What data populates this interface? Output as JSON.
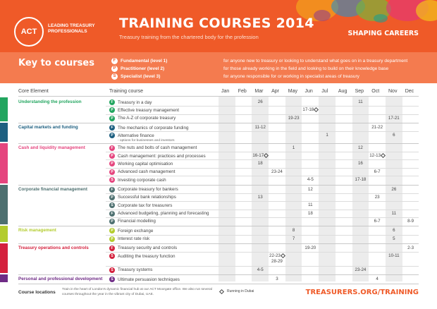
{
  "brand": {
    "logo": "ACT",
    "logo_text": "LEADING TREASURY PROFESSIONALS",
    "title": "TRAINING COURSES 2014",
    "subtitle": "Treasury training from the chartered body for the profession",
    "tagline": "SHAPING CAREERS",
    "accent": "#ef5a28"
  },
  "key": {
    "title": "Key to courses",
    "levels": [
      {
        "letter": "F",
        "label": "Fundamental (level 1)",
        "desc": "for anyone new to treasury or looking to understand what goes on in a treasury department"
      },
      {
        "letter": "P",
        "label": "Practitioner (level 2)",
        "desc": "for those already working in the field and looking to build on their knowledge base"
      },
      {
        "letter": "S",
        "label": "Specialist (level 3)",
        "desc": "for anyone responsible for or working in specialist areas of treasury"
      }
    ]
  },
  "table": {
    "core_header": "Core Element",
    "course_header": "Training course",
    "months": [
      "Jan",
      "Feb",
      "Mar",
      "Apr",
      "May",
      "Jun",
      "Jul",
      "Aug",
      "Sep",
      "Oct",
      "Nov",
      "Dec"
    ],
    "categories": [
      {
        "name": "Understanding the profession",
        "color": "#22a55f"
      },
      {
        "name": "Capital markets and funding",
        "color": "#1d5f80"
      },
      {
        "name": "Cash and liquidity management",
        "color": "#e5457e"
      },
      {
        "name": "Corporate financial management",
        "color": "#4e7070"
      },
      {
        "name": "Risk management",
        "color": "#b3cc2e"
      },
      {
        "name": "Treasury operations and controls",
        "color": "#d4213d"
      },
      {
        "name": "Personal and professional development",
        "color": "#6f2c86"
      }
    ],
    "courses": [
      {
        "level": "F",
        "name": "Treasury in a day",
        "dates": [
          {
            "m": 2,
            "t": "26"
          },
          {
            "m": 8,
            "t": "11"
          }
        ]
      },
      {
        "level": "P",
        "name": "Effective treasury management",
        "dates": [
          {
            "m": 5,
            "t": "17-18",
            "dubai": true
          }
        ]
      },
      {
        "level": "P",
        "name": "The A-Z of corporate treasury",
        "dates": [
          {
            "m": 4,
            "t": "19-23"
          },
          {
            "m": 10,
            "t": "17-21"
          }
        ]
      },
      {
        "level": "F",
        "name": "The mechanics of corporate funding",
        "dates": [
          {
            "m": 2,
            "t": "11-12"
          },
          {
            "m": 9,
            "t": "21-22"
          }
        ]
      },
      {
        "level": "P",
        "name": "Alternative finance",
        "note": "- options for businesses and investors",
        "dates": [
          {
            "m": 6,
            "t": "1"
          },
          {
            "m": 10,
            "t": "6"
          }
        ]
      },
      {
        "level": "F",
        "name": "The nuts and bolts of cash management",
        "dates": [
          {
            "m": 4,
            "t": "1"
          },
          {
            "m": 8,
            "t": "12"
          }
        ]
      },
      {
        "level": "P",
        "name": "Cash management: practices and processes",
        "dates": [
          {
            "m": 2,
            "t": "16-17",
            "dubai": true
          },
          {
            "m": 9,
            "t": "12-13",
            "dubai": true
          }
        ]
      },
      {
        "level": "P",
        "name": "Working capital optimisation",
        "dates": [
          {
            "m": 2,
            "t": "18"
          },
          {
            "m": 8,
            "t": "16"
          }
        ]
      },
      {
        "level": "P",
        "name": "Advanced cash management",
        "dates": [
          {
            "m": 3,
            "t": "23-24"
          },
          {
            "m": 9,
            "t": "6-7"
          }
        ]
      },
      {
        "level": "S",
        "name": "Investing corporate cash",
        "dates": [
          {
            "m": 5,
            "t": "4-5"
          },
          {
            "m": 8,
            "t": "17-18"
          }
        ]
      },
      {
        "level": "F",
        "name": "Corporate treasury for bankers",
        "dates": [
          {
            "m": 5,
            "t": "12"
          },
          {
            "m": 10,
            "t": "26"
          }
        ]
      },
      {
        "level": "P",
        "name": "Successful bank relationships",
        "dates": [
          {
            "m": 2,
            "t": "13"
          },
          {
            "m": 9,
            "t": "23"
          }
        ]
      },
      {
        "level": "S",
        "name": "Corporate tax for treasurers",
        "dates": [
          {
            "m": 5,
            "t": "11"
          }
        ]
      },
      {
        "level": "F",
        "name": "Advanced budgeting, planning and forecasting",
        "dates": [
          {
            "m": 5,
            "t": "18"
          },
          {
            "m": 10,
            "t": "11"
          }
        ]
      },
      {
        "level": "P",
        "name": "Financial modelling",
        "dates": [
          {
            "m": 9,
            "t": "6-7"
          },
          {
            "m": 11,
            "t": "8-9"
          }
        ]
      },
      {
        "level": "P",
        "name": "Foreign exchange",
        "dates": [
          {
            "m": 4,
            "t": "8"
          },
          {
            "m": 10,
            "t": "6"
          }
        ]
      },
      {
        "level": "P",
        "name": "Interest rate risk",
        "dates": [
          {
            "m": 4,
            "t": "7"
          },
          {
            "m": 10,
            "t": "5"
          }
        ]
      },
      {
        "level": "F",
        "name": "Treasury security and controls",
        "dates": [
          {
            "m": 5,
            "t": "19-20"
          },
          {
            "m": 11,
            "t": "2-3"
          }
        ]
      },
      {
        "level": "S",
        "name": "Auditing the treasury function",
        "dates": [
          {
            "m": 3,
            "t": "22-23",
            "dubai": true
          },
          {
            "m": 3,
            "t": "28-29",
            "sub": true
          },
          {
            "m": 10,
            "t": "10-11"
          }
        ]
      },
      {
        "level": "S",
        "name": "Treasury systems",
        "dates": [
          {
            "m": 2,
            "t": "4-5"
          },
          {
            "m": 8,
            "t": "23-24"
          }
        ]
      },
      {
        "level": "S",
        "name": "Ultimate persuasion techniques",
        "dates": [
          {
            "m": 3,
            "t": "3"
          },
          {
            "m": 9,
            "t": "4"
          }
        ]
      }
    ]
  },
  "footer": {
    "label": "Course locations",
    "text": "Train in the heart of London's dynamic financial hub at our ACT Moorgate office. We also run several courses throughout the year in the vibrant city of Dubai, UAE.",
    "dubai": "Running in Dubai",
    "url": "TREASURERS.ORG/TRAINING"
  }
}
